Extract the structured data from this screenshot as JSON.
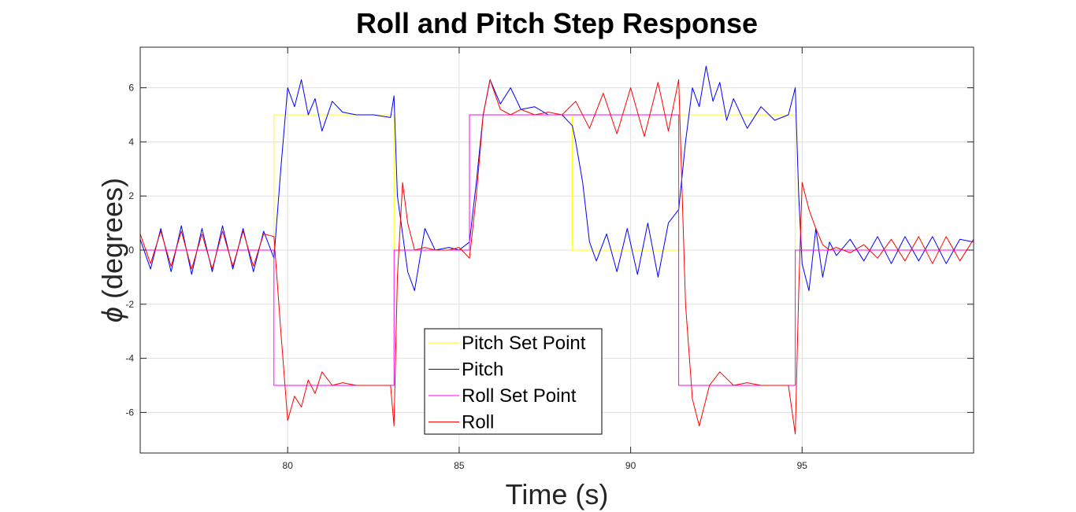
{
  "chart_data": {
    "type": "line",
    "title": "Roll and Pitch Step Response",
    "xlabel": "Time (s)",
    "ylabel_symbol": "ϕ",
    "ylabel_text": "(degrees)",
    "xlim": [
      75.7,
      100
    ],
    "ylim": [
      -7.5,
      7.5
    ],
    "xticks": [
      80,
      85,
      90,
      95
    ],
    "yticks": [
      -6,
      -4,
      -2,
      0,
      2,
      4,
      6
    ],
    "grid": true,
    "legend_position": "bottom-center",
    "series": [
      {
        "name": "Pitch Set Point",
        "color": "#ffff00",
        "x": [
          75.7,
          79.6,
          79.6,
          83.1,
          83.1,
          85.3,
          85.3,
          88.3,
          88.3,
          91.4,
          91.4,
          94.8,
          94.8,
          100
        ],
        "values": [
          0,
          0,
          5,
          5,
          0,
          0,
          5,
          5,
          0,
          0,
          5,
          5,
          0,
          0
        ]
      },
      {
        "name": "Pitch",
        "color": "#0000ff",
        "x": [
          75.7,
          76.0,
          76.3,
          76.6,
          76.9,
          77.2,
          77.5,
          77.8,
          78.1,
          78.4,
          78.7,
          79.0,
          79.3,
          79.6,
          79.8,
          80.0,
          80.2,
          80.4,
          80.6,
          80.8,
          81.0,
          81.3,
          81.6,
          82.0,
          82.5,
          83.0,
          83.1,
          83.2,
          83.35,
          83.5,
          83.7,
          84.0,
          84.3,
          84.7,
          85.0,
          85.3,
          85.5,
          85.7,
          85.9,
          86.2,
          86.5,
          86.8,
          87.2,
          87.6,
          88.0,
          88.3,
          88.4,
          88.6,
          88.8,
          89.0,
          89.3,
          89.6,
          89.9,
          90.2,
          90.5,
          90.8,
          91.1,
          91.4,
          91.6,
          91.8,
          92.0,
          92.2,
          92.4,
          92.6,
          92.8,
          93.0,
          93.4,
          93.8,
          94.2,
          94.6,
          94.8,
          94.9,
          95.0,
          95.2,
          95.4,
          95.6,
          95.8,
          96.0,
          96.4,
          96.8,
          97.2,
          97.6,
          98.0,
          98.4,
          98.8,
          99.2,
          99.6,
          100
        ],
        "values": [
          0.4,
          -0.7,
          0.8,
          -0.8,
          0.9,
          -0.9,
          0.8,
          -0.8,
          0.9,
          -0.7,
          0.8,
          -0.8,
          0.7,
          -0.3,
          3.0,
          6.0,
          5.3,
          6.3,
          5.0,
          5.6,
          4.4,
          5.5,
          5.1,
          5.0,
          5.0,
          4.9,
          5.7,
          2.0,
          0.6,
          -0.8,
          -1.5,
          0.8,
          0.0,
          0.1,
          0.0,
          0.3,
          2.5,
          5.0,
          6.3,
          5.4,
          6.0,
          5.2,
          5.3,
          5.0,
          5.0,
          4.6,
          4.0,
          2.5,
          0.3,
          -0.4,
          0.6,
          -0.8,
          0.8,
          -0.9,
          1.0,
          -1.0,
          1.0,
          1.5,
          4.0,
          6.0,
          5.3,
          6.8,
          5.5,
          6.2,
          4.8,
          5.6,
          4.5,
          5.3,
          4.8,
          5.0,
          6.0,
          2.0,
          -0.5,
          -1.5,
          0.8,
          -1.0,
          0.3,
          -0.2,
          0.4,
          -0.4,
          0.5,
          -0.5,
          0.5,
          -0.4,
          0.5,
          -0.5,
          0.4,
          0.3
        ]
      },
      {
        "name": "Roll Set Point",
        "color": "#ff00ff",
        "x": [
          75.7,
          79.6,
          79.6,
          83.1,
          83.1,
          85.3,
          85.3,
          91.4,
          91.4,
          94.8,
          94.8,
          100
        ],
        "values": [
          0,
          0,
          -5,
          -5,
          0,
          0,
          5,
          5,
          -5,
          -5,
          0,
          0
        ]
      },
      {
        "name": "Roll",
        "color": "#ff0000",
        "x": [
          75.7,
          76.0,
          76.3,
          76.6,
          76.9,
          77.2,
          77.5,
          77.8,
          78.1,
          78.4,
          78.7,
          79.0,
          79.3,
          79.6,
          79.8,
          80.0,
          80.2,
          80.4,
          80.6,
          80.8,
          81.0,
          81.3,
          81.6,
          82.0,
          82.5,
          83.0,
          83.1,
          83.2,
          83.35,
          83.5,
          83.7,
          84.0,
          84.3,
          84.7,
          85.0,
          85.3,
          85.5,
          85.7,
          85.9,
          86.2,
          86.5,
          86.8,
          87.2,
          87.6,
          88.0,
          88.4,
          88.8,
          89.2,
          89.6,
          90.0,
          90.4,
          90.8,
          91.1,
          91.4,
          91.6,
          91.8,
          92.0,
          92.3,
          92.6,
          93.0,
          93.4,
          93.8,
          94.2,
          94.6,
          94.8,
          94.9,
          95.0,
          95.2,
          95.4,
          95.6,
          95.8,
          96.0,
          96.4,
          96.8,
          97.2,
          97.6,
          98.0,
          98.4,
          98.8,
          99.2,
          99.6,
          100
        ],
        "values": [
          0.6,
          -0.5,
          0.7,
          -0.6,
          0.7,
          -0.7,
          0.6,
          -0.7,
          0.7,
          -0.6,
          0.7,
          -0.6,
          0.6,
          0.5,
          -3.0,
          -6.3,
          -5.4,
          -5.8,
          -4.8,
          -5.3,
          -4.5,
          -5.0,
          -4.9,
          -5.0,
          -5.0,
          -5.0,
          -6.5,
          -1.0,
          2.5,
          1.0,
          0.0,
          0.1,
          0.0,
          0.0,
          0.1,
          -0.3,
          2.0,
          5.0,
          6.3,
          5.2,
          5.0,
          5.2,
          5.0,
          5.1,
          5.0,
          5.5,
          4.5,
          5.8,
          4.3,
          6.0,
          4.2,
          6.2,
          4.4,
          6.3,
          -2.0,
          -5.5,
          -6.5,
          -5.0,
          -4.5,
          -5.0,
          -4.9,
          -5.0,
          -5.0,
          -5.0,
          -6.8,
          -1.5,
          2.5,
          1.5,
          0.8,
          0.2,
          0.0,
          0.1,
          -0.1,
          0.2,
          -0.3,
          0.4,
          -0.4,
          0.5,
          -0.5,
          0.5,
          -0.4,
          0.4
        ]
      }
    ]
  }
}
